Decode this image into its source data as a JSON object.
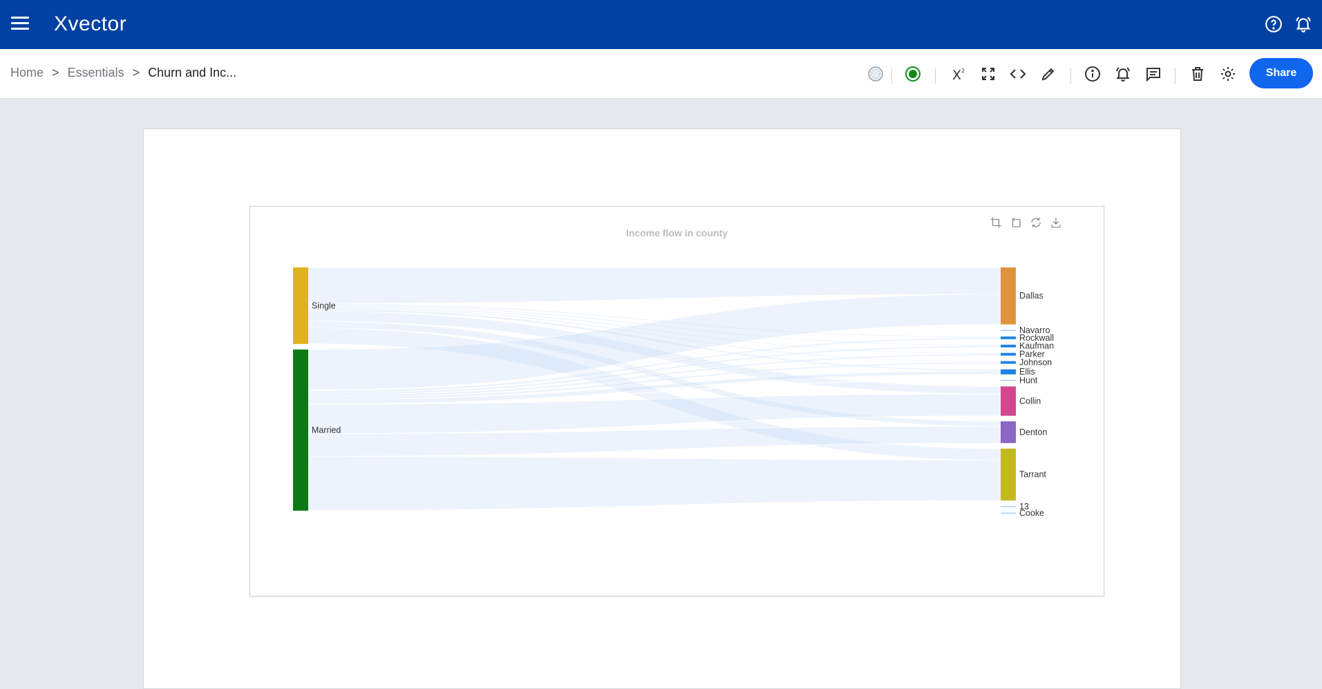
{
  "app": {
    "brand": "Xvector"
  },
  "breadcrumb": {
    "home": "Home",
    "essentials": "Essentials",
    "current": "Churn and Inc..."
  },
  "toolbar": {
    "share_label": "Share"
  },
  "colors": {
    "topbar": "#0041a3",
    "accent": "#1166ee",
    "status_green": "#0b8a17"
  },
  "icons": [
    "menu-icon",
    "help-icon",
    "notification-bell-icon",
    "loading-icon",
    "status-icon",
    "formula-icon",
    "fullscreen-icon",
    "code-icon",
    "edit-icon",
    "info-icon",
    "alert-icon",
    "comment-icon",
    "delete-icon",
    "settings-icon",
    "zoom-select-icon",
    "zoom-back-icon",
    "restore-icon",
    "download-icon"
  ],
  "chart_data": {
    "type": "sankey",
    "title": "Income flow in county",
    "sources": [
      {
        "name": "Single",
        "color": "#e0b21c"
      },
      {
        "name": "Married",
        "color": "#0b7a14"
      }
    ],
    "targets": [
      {
        "name": "Dallas",
        "color": "#e0943a"
      },
      {
        "name": "Navarro",
        "color": "#aacbf0"
      },
      {
        "name": "Rockwall",
        "color": "#1c82e6"
      },
      {
        "name": "Kaufman",
        "color": "#1c82e6"
      },
      {
        "name": "Parker",
        "color": "#1c82e6"
      },
      {
        "name": "Johnson",
        "color": "#1c82e6"
      },
      {
        "name": "Ellis",
        "color": "#1c82e6"
      },
      {
        "name": "Hunt",
        "color": "#aacbf0"
      },
      {
        "name": "Collin",
        "color": "#d4478e"
      },
      {
        "name": "Denton",
        "color": "#8c66c4"
      },
      {
        "name": "Tarrant",
        "color": "#c4b91a"
      },
      {
        "name": "13",
        "color": "#aacbf0"
      },
      {
        "name": "Cooke",
        "color": "#aacbf0"
      }
    ],
    "links": [
      {
        "source": "Single",
        "target": "Dallas",
        "value": 16
      },
      {
        "source": "Single",
        "target": "Rockwall",
        "value": 0.6
      },
      {
        "source": "Single",
        "target": "Kaufman",
        "value": 0.6
      },
      {
        "source": "Single",
        "target": "Parker",
        "value": 0.6
      },
      {
        "source": "Single",
        "target": "Johnson",
        "value": 0.6
      },
      {
        "source": "Single",
        "target": "Ellis",
        "value": 1
      },
      {
        "source": "Single",
        "target": "Collin",
        "value": 4.5
      },
      {
        "source": "Single",
        "target": "Denton",
        "value": 3
      },
      {
        "source": "Single",
        "target": "Tarrant",
        "value": 7
      },
      {
        "source": "Single",
        "target": "13",
        "value": 0.1
      },
      {
        "source": "Married",
        "target": "Dallas",
        "value": 18
      },
      {
        "source": "Married",
        "target": "Navarro",
        "value": 0.2
      },
      {
        "source": "Married",
        "target": "Rockwall",
        "value": 1
      },
      {
        "source": "Married",
        "target": "Kaufman",
        "value": 1
      },
      {
        "source": "Married",
        "target": "Parker",
        "value": 1
      },
      {
        "source": "Married",
        "target": "Johnson",
        "value": 1
      },
      {
        "source": "Married",
        "target": "Ellis",
        "value": 2
      },
      {
        "source": "Married",
        "target": "Hunt",
        "value": 0.2
      },
      {
        "source": "Married",
        "target": "Collin",
        "value": 13
      },
      {
        "source": "Married",
        "target": "Denton",
        "value": 10
      },
      {
        "source": "Married",
        "target": "Tarrant",
        "value": 24
      },
      {
        "source": "Married",
        "target": "Cooke",
        "value": 0.2
      }
    ]
  }
}
